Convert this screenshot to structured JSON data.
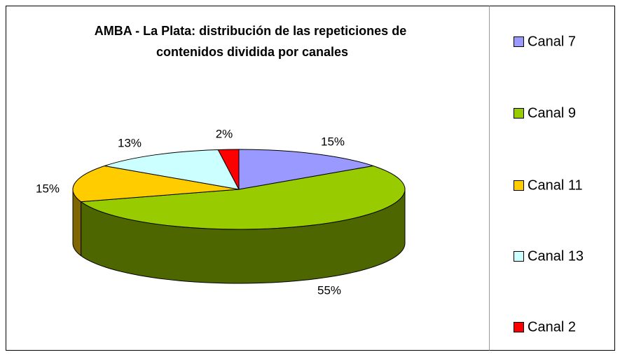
{
  "chart_data": {
    "type": "pie3d",
    "title": "AMBA - La Plata: distribución de las repeticiones de contenidos dividida por canales",
    "categories": [
      "Canal 7",
      "Canal 9",
      "Canal 11",
      "Canal 13",
      "Canal 2"
    ],
    "values": [
      15,
      55,
      15,
      13,
      2
    ],
    "value_labels": [
      "15%",
      "55%",
      "15%",
      "13%",
      "2%"
    ],
    "colors": [
      "#9999ff",
      "#99cc00",
      "#ffcc00",
      "#ccffff",
      "#ff0000"
    ],
    "legend": "right"
  }
}
